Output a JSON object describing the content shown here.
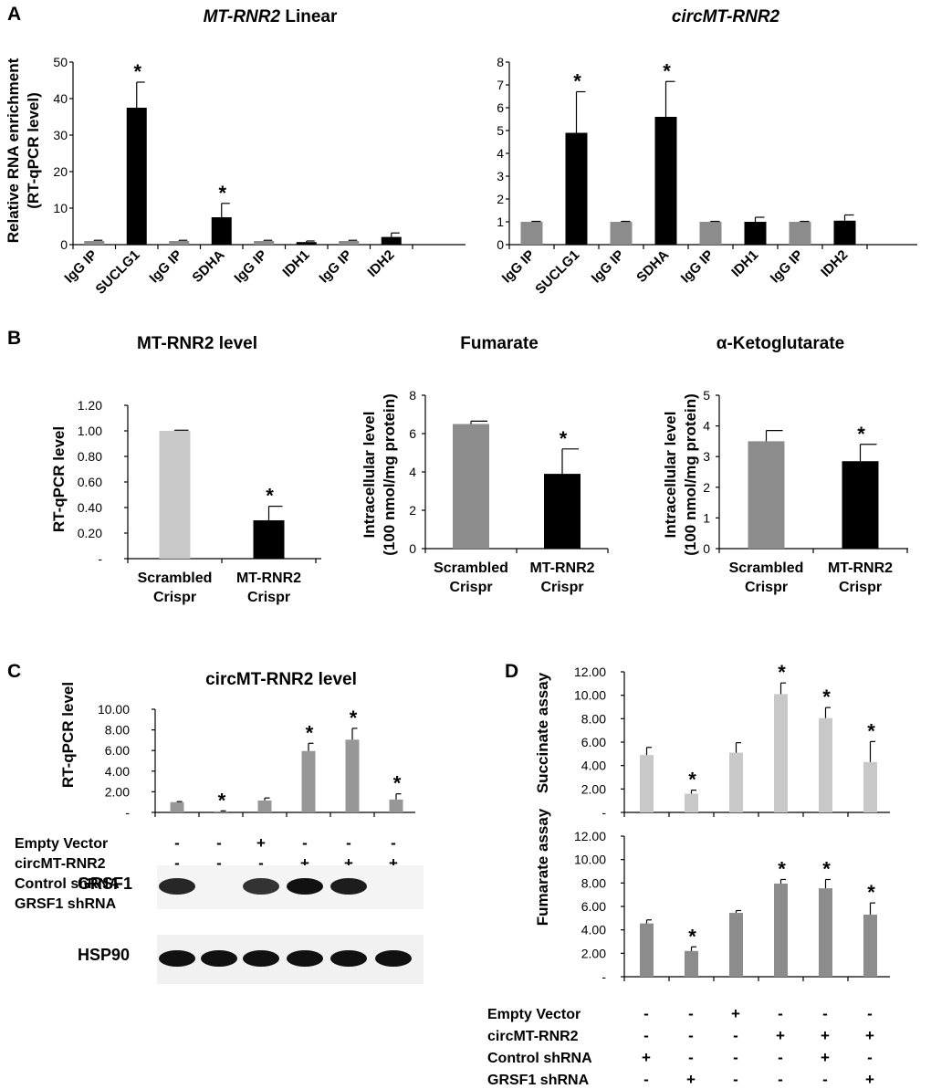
{
  "panels": {
    "A": "A",
    "B": "B",
    "C": "C",
    "D": "D"
  },
  "colors": {
    "black": "#000000",
    "gray": "#8c8c8c",
    "light_gray": "#c8c8c8",
    "mid_gray": "#979797"
  },
  "chart_data": [
    {
      "id": "A1",
      "type": "bar",
      "title": "MT-RNR2 Linear",
      "title_italic_part": "MT-RNR2",
      "title_plain_part": " Linear",
      "ylabel": "Relative RNA enrichment (RT-qPCR level)",
      "ylabel_lines": [
        "Relative RNA enrichment",
        "(RT-qPCR level)"
      ],
      "ylim": [
        0,
        50
      ],
      "yticks": [
        "0",
        "10",
        "20",
        "30",
        "40",
        "50"
      ],
      "categories": [
        "IgG IP",
        "SUCLG1",
        "IgG IP",
        "SDHA",
        "IgG IP",
        "IDH1",
        "IgG IP",
        "IDH2"
      ],
      "values": [
        1,
        37.5,
        1,
        7.5,
        1,
        0.7,
        1,
        2.1
      ],
      "errors": [
        0.2,
        7,
        0.2,
        3.8,
        0.2,
        0.3,
        0.2,
        1.1
      ],
      "bar_colors": [
        "gray",
        "black",
        "gray",
        "black",
        "gray",
        "black",
        "gray",
        "black"
      ],
      "significant": [
        false,
        true,
        false,
        true,
        false,
        false,
        false,
        false
      ],
      "star": "*"
    },
    {
      "id": "A2",
      "type": "bar",
      "title": "circMT-RNR2",
      "ylim": [
        0,
        8
      ],
      "yticks": [
        "0",
        "1",
        "2",
        "3",
        "4",
        "5",
        "6",
        "7",
        "8"
      ],
      "categories": [
        "IgG IP",
        "SUCLG1",
        "IgG IP",
        "SDHA",
        "IgG IP",
        "IDH1",
        "IgG IP",
        "IDH2"
      ],
      "values": [
        1,
        4.9,
        1,
        5.6,
        1,
        1.0,
        1,
        1.05
      ],
      "errors": [
        0.02,
        1.8,
        0.02,
        1.55,
        0.02,
        0.2,
        0.02,
        0.25
      ],
      "bar_colors": [
        "gray",
        "black",
        "gray",
        "black",
        "gray",
        "black",
        "gray",
        "black"
      ],
      "significant": [
        false,
        true,
        false,
        true,
        false,
        false,
        false,
        false
      ],
      "star": "*"
    },
    {
      "id": "B1",
      "type": "bar",
      "title": "MT-RNR2 level",
      "ylabel": "RT-qPCR level",
      "ylim": [
        0,
        1.2
      ],
      "yticks": [
        "-",
        "0.20",
        "0.40",
        "0.60",
        "0.80",
        "1.00",
        "1.20"
      ],
      "categories": [
        [
          "Scrambled",
          "Crispr"
        ],
        [
          "MT-RNR2",
          "Crispr"
        ]
      ],
      "values": [
        1.0,
        0.3
      ],
      "errors": [
        0.005,
        0.11
      ],
      "bar_colors": [
        "light_gray",
        "black"
      ],
      "significant": [
        false,
        true
      ],
      "star": "*"
    },
    {
      "id": "B2",
      "type": "bar",
      "title": "Fumarate",
      "ylabel_lines": [
        "Intracellular level",
        "(100 nmol/mg protein)"
      ],
      "ylim": [
        0,
        8
      ],
      "yticks": [
        "0",
        "2",
        "4",
        "6",
        "8"
      ],
      "categories": [
        [
          "Scrambled",
          "Crispr"
        ],
        [
          "MT-RNR2",
          "Crispr"
        ]
      ],
      "values": [
        6.5,
        3.9
      ],
      "errors": [
        0.15,
        1.3
      ],
      "bar_colors": [
        "gray",
        "black"
      ],
      "significant": [
        false,
        true
      ],
      "star": "*"
    },
    {
      "id": "B3",
      "type": "bar",
      "title": "α-Ketoglutarate",
      "ylabel_lines": [
        "Intracellular level",
        "(100 nmol/mg protein)"
      ],
      "ylim": [
        0,
        5
      ],
      "yticks": [
        "0",
        "1",
        "2",
        "3",
        "4",
        "5"
      ],
      "categories": [
        [
          "Scrambled",
          "Crispr"
        ],
        [
          "MT-RNR2",
          "Crispr"
        ]
      ],
      "values": [
        3.5,
        2.85
      ],
      "errors": [
        0.35,
        0.55
      ],
      "bar_colors": [
        "gray",
        "black"
      ],
      "significant": [
        false,
        true
      ],
      "star": "*"
    },
    {
      "id": "C",
      "type": "bar",
      "title": "circMT-RNR2 level",
      "ylabel": "RT-qPCR level",
      "ylim": [
        0,
        10
      ],
      "yticks": [
        "-",
        "2.00",
        "4.00",
        "6.00",
        "8.00",
        "10.00"
      ],
      "values": [
        1.0,
        0.1,
        1.15,
        5.95,
        7.05,
        1.25
      ],
      "errors": [
        0.05,
        0.05,
        0.25,
        0.75,
        1.1,
        0.55
      ],
      "bar_colors": [
        "mid_gray",
        "mid_gray",
        "mid_gray",
        "mid_gray",
        "mid_gray",
        "mid_gray"
      ],
      "significant": [
        false,
        true,
        false,
        true,
        true,
        true
      ],
      "star": "*"
    },
    {
      "id": "D1",
      "type": "bar",
      "ylabel": "Succinate assay",
      "ylim": [
        0,
        12
      ],
      "yticks": [
        "-",
        "2.00",
        "4.00",
        "6.00",
        "8.00",
        "10.00",
        "12.00"
      ],
      "values": [
        4.9,
        1.6,
        5.1,
        10.1,
        8.05,
        4.3
      ],
      "errors": [
        0.65,
        0.3,
        0.85,
        0.95,
        0.9,
        1.75
      ],
      "bar_colors": [
        "light_gray",
        "light_gray",
        "light_gray",
        "light_gray",
        "light_gray",
        "light_gray"
      ],
      "significant": [
        false,
        true,
        false,
        true,
        true,
        true
      ],
      "star": "*"
    },
    {
      "id": "D2",
      "type": "bar",
      "ylabel": "Fumarate assay",
      "ylim": [
        0,
        12
      ],
      "yticks": [
        "-",
        "2.00",
        "4.00",
        "6.00",
        "8.00",
        "10.00",
        "12.00"
      ],
      "values": [
        4.55,
        2.2,
        5.45,
        7.95,
        7.55,
        5.3
      ],
      "errors": [
        0.3,
        0.35,
        0.2,
        0.35,
        0.75,
        1.0
      ],
      "bar_colors": [
        "gray",
        "gray",
        "gray",
        "gray",
        "gray",
        "gray"
      ],
      "significant": [
        false,
        true,
        false,
        true,
        true,
        true
      ],
      "star": "*"
    }
  ],
  "conditions": {
    "rows": [
      {
        "label": "Empty Vector",
        "marks": [
          "-",
          "-",
          "+",
          "-",
          "-",
          "-"
        ]
      },
      {
        "label": "circMT-RNR2",
        "marks": [
          "-",
          "-",
          "-",
          "+",
          "+",
          "+"
        ]
      },
      {
        "label": "Control shRNA",
        "marks": [
          "+",
          "-",
          "-",
          "-",
          "+",
          "-"
        ]
      },
      {
        "label": "GRSF1 shRNA",
        "marks": [
          "-",
          "+",
          "-",
          "-",
          "-",
          "+"
        ]
      }
    ]
  },
  "blots": [
    {
      "label": "GRSF1",
      "band_intensity": [
        0.9,
        0.0,
        0.85,
        1.0,
        0.95,
        0.0
      ]
    },
    {
      "label": "HSP90",
      "band_intensity": [
        1.0,
        1.0,
        1.0,
        1.0,
        1.0,
        1.0
      ]
    }
  ]
}
